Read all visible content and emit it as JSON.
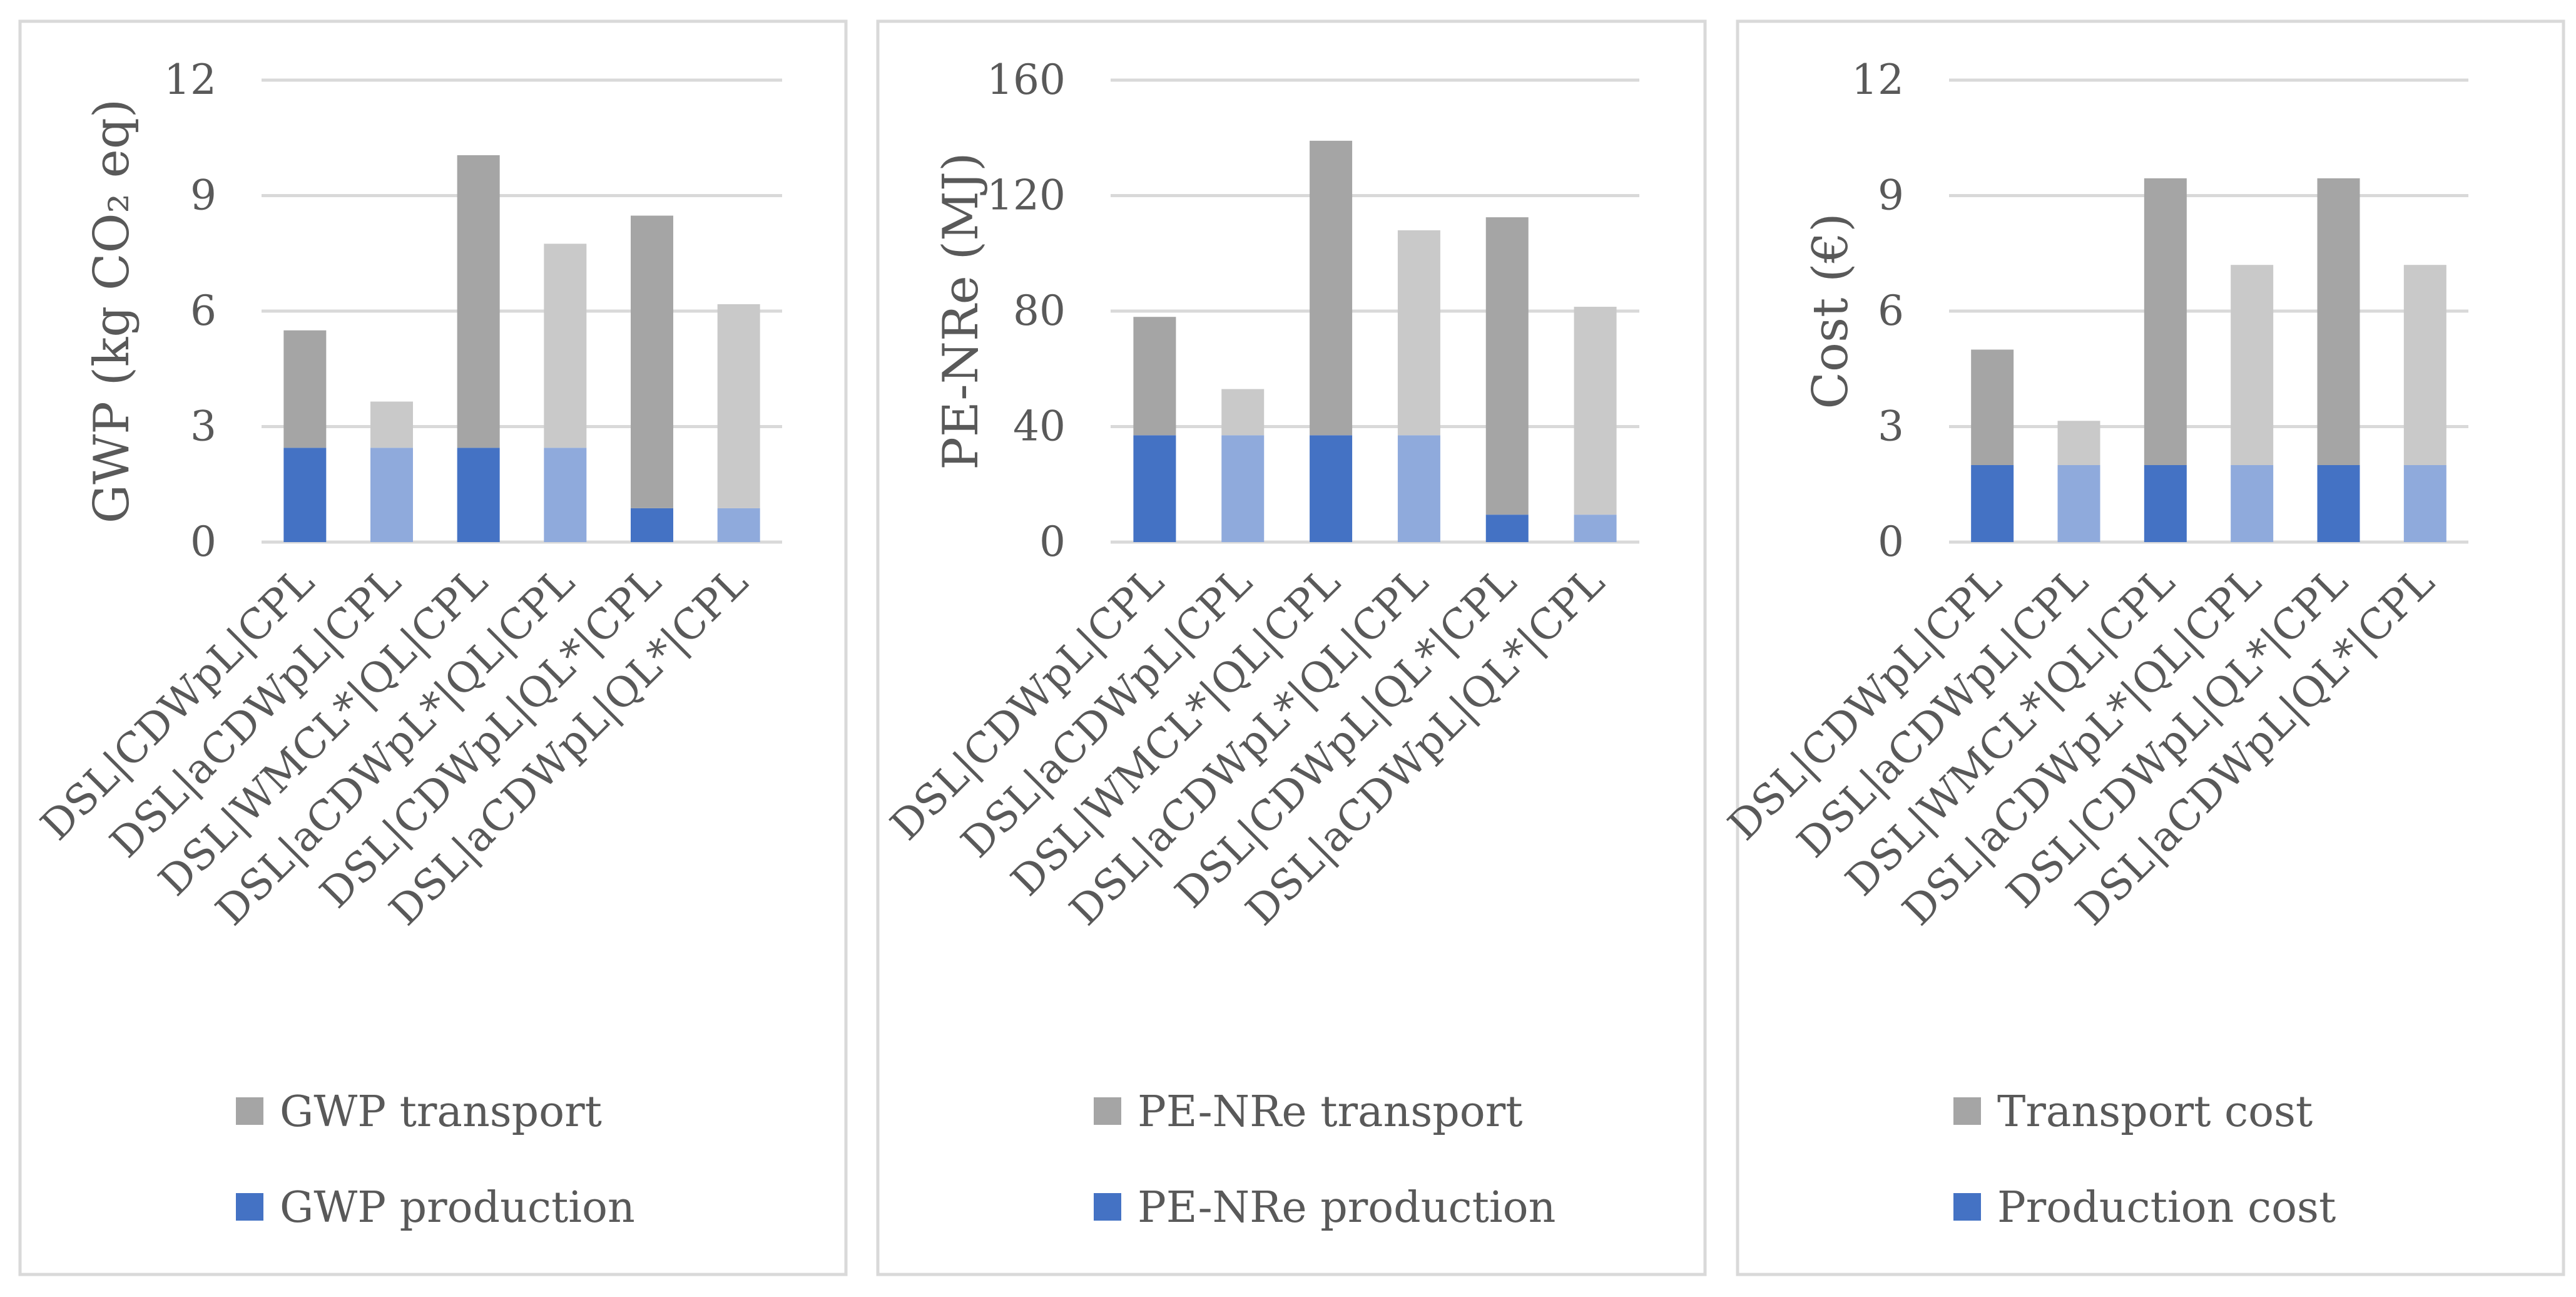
{
  "chart_data": [
    {
      "type": "bar",
      "stacked": true,
      "categories": [
        "DSL|CDWpL|CPL",
        "DSL|aCDWpL|CPL",
        "DSL|WMCL*|QL|CPL",
        "DSL|aCDWpL*|QL|CPL",
        "DSL|CDWpL|QL*|CPL",
        "DSL|aCDWpL|QL*|CPL"
      ],
      "ylabel": "GWP (kg CO₂ eq)",
      "ylim": [
        0,
        12
      ],
      "yticks": [
        0,
        3,
        6,
        9,
        12
      ],
      "grid": true,
      "legend_position": "bottom",
      "series": [
        {
          "name": "GWP production",
          "values": [
            2.45,
            2.45,
            2.45,
            2.45,
            0.88,
            0.88
          ]
        },
        {
          "name": "GWP transport",
          "values": [
            3.05,
            1.2,
            7.6,
            5.3,
            7.6,
            5.3
          ]
        }
      ]
    },
    {
      "type": "bar",
      "stacked": true,
      "categories": [
        "DSL|CDWpL|CPL",
        "DSL|aCDWpL|CPL",
        "DSL|WMCL*|QL|CPL",
        "DSL|aCDWpL*|QL|CPL",
        "DSL|CDWpL|QL*|CPL",
        "DSL|aCDWpL|QL*|CPL"
      ],
      "ylabel": "PE-NRe (MJ)",
      "ylim": [
        0,
        160
      ],
      "yticks": [
        0,
        40,
        80,
        120,
        160
      ],
      "grid": true,
      "legend_position": "bottom",
      "series": [
        {
          "name": "PE-NRe production",
          "values": [
            37,
            37,
            37,
            37,
            9.5,
            9.5
          ]
        },
        {
          "name": "PE-NRe transport",
          "values": [
            41,
            16,
            102,
            71,
            103,
            72
          ]
        }
      ]
    },
    {
      "type": "bar",
      "stacked": true,
      "categories": [
        "DSL|CDWpL|CPL",
        "DSL|aCDWpL|CPL",
        "DSL|WMCL*|QL|CPL",
        "DSL|aCDWpL*|QL|CPL",
        "DSL|CDWpL|QL*|CPL",
        "DSL|aCDWpL|QL*|CPL"
      ],
      "ylabel": "Cost (€)",
      "ylim": [
        0,
        12
      ],
      "yticks": [
        0,
        3,
        6,
        9,
        12
      ],
      "grid": true,
      "legend_position": "bottom",
      "series": [
        {
          "name": "Production cost",
          "values": [
            2.0,
            2.0,
            2.0,
            2.0,
            2.0,
            2.0
          ]
        },
        {
          "name": "Transport cost",
          "values": [
            3.0,
            1.15,
            7.45,
            5.2,
            7.45,
            5.2
          ]
        }
      ]
    }
  ],
  "colors": {
    "production_dark": "#4472C4",
    "production_light": "#8FAADC",
    "transport_dark": "#A5A5A5",
    "transport_light": "#C9C9C9",
    "grid": "#D9D9D9",
    "border": "#D9D9D9"
  }
}
